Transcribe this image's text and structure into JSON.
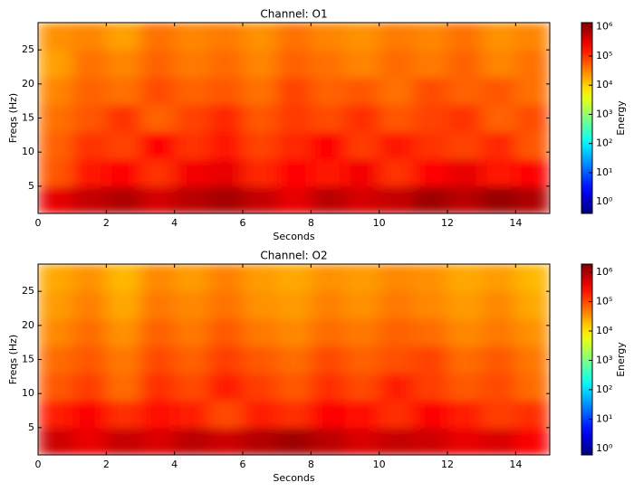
{
  "chart_data": [
    {
      "type": "heatmap",
      "title": "Channel: O1",
      "xlabel": "Seconds",
      "ylabel": "Freqs (Hz)",
      "colormap": "jet",
      "x": [
        0.5,
        1.5,
        2.5,
        3.5,
        4.5,
        5.5,
        6.5,
        7.5,
        8.5,
        9.5,
        10.5,
        11.5,
        12.5,
        13.5,
        14.5
      ],
      "y": [
        3,
        7,
        11,
        15,
        19,
        23,
        27
      ],
      "z": [
        [
          300000,
          500000,
          700000,
          400000,
          600000,
          800000,
          500000,
          300000,
          600000,
          400000,
          500000,
          900000,
          600000,
          1000000,
          700000
        ],
        [
          60000,
          150000,
          200000,
          100000,
          250000,
          300000,
          120000,
          200000,
          150000,
          250000,
          100000,
          200000,
          300000,
          150000,
          200000
        ],
        [
          50000,
          100000,
          80000,
          200000,
          100000,
          150000,
          80000,
          120000,
          200000,
          90000,
          150000,
          100000,
          80000,
          120000,
          60000
        ],
        [
          40000,
          60000,
          100000,
          50000,
          80000,
          120000,
          60000,
          90000,
          70000,
          110000,
          60000,
          80000,
          100000,
          50000,
          70000
        ],
        [
          30000,
          50000,
          40000,
          70000,
          50000,
          60000,
          40000,
          80000,
          50000,
          60000,
          40000,
          70000,
          50000,
          60000,
          40000
        ],
        [
          20000,
          40000,
          30000,
          50000,
          35000,
          45000,
          30000,
          50000,
          40000,
          30000,
          45000,
          35000,
          50000,
          30000,
          40000
        ],
        [
          25000,
          30000,
          20000,
          40000,
          30000,
          35000,
          25000,
          40000,
          30000,
          25000,
          35000,
          30000,
          40000,
          25000,
          30000
        ]
      ],
      "xlim": [
        0,
        15
      ],
      "ylim": [
        1,
        29
      ],
      "xticks": [
        0,
        2,
        4,
        6,
        8,
        10,
        12,
        14
      ],
      "yticks": [
        5,
        10,
        15,
        20,
        25
      ],
      "colorbar": {
        "label": "Energy",
        "log": true,
        "lim": [
          0.4,
          1400000
        ],
        "ticks": [
          {
            "value": 1,
            "label": "10⁰"
          },
          {
            "value": 10,
            "label": "10¹"
          },
          {
            "value": 100,
            "label": "10²"
          },
          {
            "value": 1000,
            "label": "10³"
          },
          {
            "value": 10000,
            "label": "10⁴"
          },
          {
            "value": 100000,
            "label": "10⁵"
          },
          {
            "value": 1000000,
            "label": "10⁶"
          }
        ]
      }
    },
    {
      "type": "heatmap",
      "title": "Channel: O2",
      "xlabel": "Seconds",
      "ylabel": "Freqs (Hz)",
      "colormap": "jet",
      "x": [
        0.5,
        1.5,
        2.5,
        3.5,
        4.5,
        5.5,
        6.5,
        7.5,
        8.5,
        9.5,
        10.5,
        11.5,
        12.5,
        13.5,
        14.5
      ],
      "y": [
        3,
        7,
        11,
        15,
        19,
        23,
        27
      ],
      "z": [
        [
          600000,
          400000,
          700000,
          500000,
          800000,
          600000,
          900000,
          1200000,
          800000,
          500000,
          700000,
          600000,
          400000,
          500000,
          300000
        ],
        [
          200000,
          300000,
          150000,
          250000,
          200000,
          100000,
          200000,
          150000,
          300000,
          250000,
          150000,
          300000,
          200000,
          120000,
          150000
        ],
        [
          80000,
          120000,
          60000,
          150000,
          100000,
          200000,
          120000,
          80000,
          150000,
          100000,
          200000,
          120000,
          80000,
          100000,
          60000
        ],
        [
          60000,
          80000,
          50000,
          100000,
          70000,
          120000,
          80000,
          60000,
          100000,
          70000,
          90000,
          110000,
          60000,
          80000,
          50000
        ],
        [
          40000,
          60000,
          35000,
          70000,
          50000,
          80000,
          50000,
          40000,
          60000,
          50000,
          70000,
          60000,
          40000,
          50000,
          35000
        ],
        [
          30000,
          45000,
          25000,
          50000,
          40000,
          55000,
          35000,
          30000,
          45000,
          35000,
          50000,
          40000,
          30000,
          40000,
          25000
        ],
        [
          25000,
          35000,
          20000,
          40000,
          30000,
          45000,
          30000,
          25000,
          35000,
          30000,
          40000,
          35000,
          25000,
          30000,
          20000
        ]
      ],
      "xlim": [
        0,
        15
      ],
      "ylim": [
        1,
        29
      ],
      "xticks": [
        0,
        2,
        4,
        6,
        8,
        10,
        12,
        14
      ],
      "yticks": [
        5,
        10,
        15,
        20,
        25
      ],
      "colorbar": {
        "label": "Energy",
        "log": true,
        "lim": [
          0.6,
          1900000
        ],
        "ticks": [
          {
            "value": 1,
            "label": "10⁰"
          },
          {
            "value": 10,
            "label": "10¹"
          },
          {
            "value": 100,
            "label": "10²"
          },
          {
            "value": 1000,
            "label": "10³"
          },
          {
            "value": 10000,
            "label": "10⁴"
          },
          {
            "value": 100000,
            "label": "10⁵"
          },
          {
            "value": 1000000,
            "label": "10⁶"
          }
        ]
      }
    }
  ]
}
